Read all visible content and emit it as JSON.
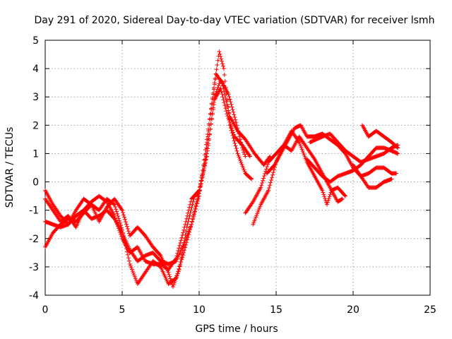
{
  "chart_data": {
    "type": "scatter",
    "title": "Day 291 of 2020, Sidereal Day-to-day VTEC variation (SDTVAR) for receiver lsmh",
    "xlabel": "GPS time / hours",
    "ylabel": "SDTVAR / TECUs",
    "xlim": [
      0,
      25
    ],
    "ylim": [
      -4,
      5
    ],
    "xticks": [
      0,
      5,
      10,
      15,
      20,
      25
    ],
    "yticks": [
      -4,
      -3,
      -2,
      -1,
      0,
      1,
      2,
      3,
      4,
      5
    ],
    "grid": true,
    "marker": "plus",
    "color": "#ff0000",
    "series": [
      {
        "values": [
          [
            0.0,
            -1.4
          ],
          [
            0.5,
            -1.5
          ],
          [
            1.0,
            -1.6
          ],
          [
            1.5,
            -1.5
          ],
          [
            2.0,
            -1.2
          ],
          [
            2.5,
            -1.0
          ],
          [
            3.0,
            -1.3
          ],
          [
            3.5,
            -1.2
          ],
          [
            4.0,
            -1.0
          ],
          [
            4.5,
            -1.3
          ],
          [
            5.0,
            -1.8
          ],
          [
            5.5,
            -2.4
          ],
          [
            6.0,
            -2.8
          ],
          [
            6.5,
            -2.6
          ],
          [
            7.0,
            -2.5
          ],
          [
            7.5,
            -2.8
          ],
          [
            8.0,
            -2.9
          ],
          [
            8.5,
            -2.8
          ],
          [
            9.0,
            -2.2
          ],
          [
            9.5,
            -1.5
          ],
          [
            10.0,
            -0.5
          ],
          [
            10.5,
            1.5
          ],
          [
            11.0,
            3.5
          ],
          [
            11.3,
            4.6
          ],
          [
            11.6,
            4.0
          ],
          [
            12.0,
            2.0
          ],
          [
            12.5,
            1.0
          ],
          [
            13.0,
            0.3
          ],
          [
            13.4,
            0.1
          ]
        ]
      },
      {
        "values": [
          [
            0.0,
            -2.3
          ],
          [
            0.5,
            -1.8
          ],
          [
            1.0,
            -1.5
          ],
          [
            1.5,
            -1.3
          ],
          [
            2.0,
            -1.4
          ],
          [
            2.5,
            -1.1
          ],
          [
            3.0,
            -0.8
          ],
          [
            3.5,
            -1.0
          ],
          [
            4.0,
            -0.6
          ],
          [
            4.5,
            -0.8
          ],
          [
            5.0,
            -1.7
          ],
          [
            5.5,
            -2.9
          ],
          [
            6.0,
            -3.6
          ],
          [
            6.5,
            -3.2
          ],
          [
            7.0,
            -2.8
          ],
          [
            7.5,
            -3.0
          ],
          [
            8.0,
            -3.6
          ],
          [
            8.5,
            -3.4
          ],
          [
            9.0,
            -2.5
          ],
          [
            9.5,
            -1.5
          ],
          [
            10.0,
            -0.3
          ],
          [
            10.5,
            1.0
          ],
          [
            11.0,
            2.9
          ],
          [
            11.4,
            3.3
          ],
          [
            11.8,
            2.4
          ],
          [
            12.3,
            1.6
          ],
          [
            12.8,
            1.3
          ],
          [
            13.3,
            0.9
          ]
        ]
      },
      {
        "values": [
          [
            0.0,
            -0.3
          ],
          [
            0.5,
            -0.8
          ],
          [
            1.0,
            -1.2
          ],
          [
            1.5,
            -1.5
          ],
          [
            2.0,
            -1.0
          ],
          [
            2.5,
            -0.6
          ],
          [
            3.0,
            -0.8
          ],
          [
            3.5,
            -1.4
          ],
          [
            4.0,
            -0.9
          ],
          [
            4.5,
            -0.6
          ],
          [
            5.0,
            -1.0
          ],
          [
            5.5,
            -1.9
          ],
          [
            6.0,
            -1.6
          ],
          [
            6.5,
            -1.9
          ],
          [
            7.0,
            -2.3
          ],
          [
            7.5,
            -2.6
          ],
          [
            8.0,
            -3.2
          ],
          [
            8.3,
            -3.7
          ],
          [
            8.7,
            -3.1
          ],
          [
            9.2,
            -1.6
          ],
          [
            9.7,
            -0.5
          ],
          [
            10.0,
            -0.4
          ],
          [
            10.3,
            0.4
          ],
          [
            10.7,
            2.2
          ],
          [
            11.1,
            3.8
          ],
          [
            11.5,
            3.5
          ],
          [
            12.0,
            2.3
          ],
          [
            12.5,
            1.8
          ],
          [
            13.0,
            1.5
          ],
          [
            13.6,
            1.0
          ],
          [
            14.2,
            0.6
          ],
          [
            14.6,
            0.9
          ]
        ]
      },
      {
        "values": [
          [
            0.0,
            -0.6
          ],
          [
            0.5,
            -1.0
          ],
          [
            1.0,
            -1.4
          ],
          [
            1.5,
            -1.2
          ],
          [
            2.0,
            -1.6
          ],
          [
            2.5,
            -1.0
          ],
          [
            3.0,
            -0.7
          ],
          [
            3.5,
            -0.5
          ],
          [
            4.0,
            -0.7
          ],
          [
            4.5,
            -1.2
          ],
          [
            5.0,
            -2.0
          ],
          [
            5.5,
            -2.5
          ],
          [
            6.0,
            -2.3
          ],
          [
            6.5,
            -2.8
          ],
          [
            7.0,
            -2.9
          ],
          [
            7.5,
            -2.9
          ],
          [
            8.0,
            -3.1
          ],
          [
            8.5,
            -2.7
          ],
          [
            9.0,
            -1.7
          ],
          [
            9.5,
            -0.6
          ],
          [
            10.0,
            -0.3
          ],
          [
            10.5,
            0.9
          ],
          [
            11.0,
            3.0
          ],
          [
            11.4,
            3.6
          ],
          [
            11.9,
            3.1
          ],
          [
            12.4,
            2.1
          ],
          [
            12.8,
            1.2
          ],
          [
            13.0,
            0.9
          ]
        ]
      },
      {
        "values": [
          [
            13.5,
            -1.5
          ],
          [
            14.0,
            -0.8
          ],
          [
            14.5,
            -0.3
          ],
          [
            15.0,
            0.7
          ],
          [
            15.5,
            1.3
          ],
          [
            16.0,
            1.8
          ],
          [
            16.5,
            1.4
          ],
          [
            17.0,
            0.7
          ],
          [
            17.5,
            0.2
          ],
          [
            18.0,
            -0.3
          ],
          [
            18.3,
            -0.8
          ],
          [
            18.6,
            -0.3
          ],
          [
            19.0,
            -0.2
          ],
          [
            19.5,
            -0.5
          ]
        ]
      },
      {
        "values": [
          [
            13.0,
            -1.1
          ],
          [
            13.5,
            -0.7
          ],
          [
            14.0,
            -0.2
          ],
          [
            14.5,
            0.7
          ],
          [
            15.0,
            1.0
          ],
          [
            15.5,
            1.3
          ],
          [
            16.0,
            1.1
          ],
          [
            16.5,
            1.6
          ],
          [
            17.0,
            1.2
          ],
          [
            17.5,
            0.8
          ],
          [
            18.0,
            0.3
          ],
          [
            18.5,
            -0.2
          ],
          [
            19.0,
            -0.7
          ],
          [
            19.3,
            -0.6
          ]
        ]
      },
      {
        "values": [
          [
            14.4,
            0.3
          ],
          [
            14.9,
            0.6
          ],
          [
            15.3,
            1.0
          ],
          [
            15.8,
            1.5
          ],
          [
            16.2,
            1.9
          ],
          [
            16.6,
            2.0
          ],
          [
            17.0,
            1.6
          ],
          [
            17.5,
            1.6
          ],
          [
            18.0,
            1.7
          ],
          [
            18.5,
            1.5
          ],
          [
            19.0,
            1.3
          ],
          [
            19.5,
            1.0
          ],
          [
            20.0,
            0.5
          ],
          [
            20.5,
            0.2
          ],
          [
            21.0,
            0.3
          ],
          [
            21.5,
            0.5
          ],
          [
            22.0,
            0.5
          ],
          [
            22.5,
            0.3
          ],
          [
            22.8,
            0.3
          ]
        ]
      },
      {
        "values": [
          [
            17.2,
            1.4
          ],
          [
            17.6,
            1.5
          ],
          [
            18.0,
            1.6
          ],
          [
            18.5,
            1.7
          ],
          [
            19.0,
            1.4
          ],
          [
            19.5,
            1.1
          ],
          [
            20.0,
            0.9
          ],
          [
            20.5,
            0.7
          ],
          [
            21.0,
            0.8
          ],
          [
            21.5,
            0.9
          ],
          [
            22.0,
            1.0
          ],
          [
            22.5,
            1.2
          ],
          [
            22.9,
            1.3
          ]
        ]
      },
      {
        "values": [
          [
            17.0,
            0.8
          ],
          [
            17.5,
            0.5
          ],
          [
            18.0,
            0.2
          ],
          [
            18.5,
            0.0
          ],
          [
            19.0,
            0.2
          ],
          [
            19.5,
            0.3
          ],
          [
            20.0,
            0.4
          ],
          [
            20.5,
            0.6
          ],
          [
            21.0,
            0.9
          ],
          [
            21.5,
            1.2
          ],
          [
            22.0,
            1.2
          ],
          [
            22.5,
            1.1
          ],
          [
            22.9,
            1.0
          ]
        ]
      },
      {
        "values": [
          [
            20.6,
            2.0
          ],
          [
            21.0,
            1.6
          ],
          [
            21.5,
            1.8
          ],
          [
            22.0,
            1.6
          ],
          [
            22.5,
            1.4
          ],
          [
            22.9,
            1.2
          ]
        ]
      },
      {
        "values": [
          [
            20.0,
            0.6
          ],
          [
            20.5,
            0.2
          ],
          [
            21.0,
            -0.2
          ],
          [
            21.5,
            -0.2
          ],
          [
            22.0,
            0.0
          ],
          [
            22.5,
            0.1
          ]
        ]
      }
    ]
  }
}
